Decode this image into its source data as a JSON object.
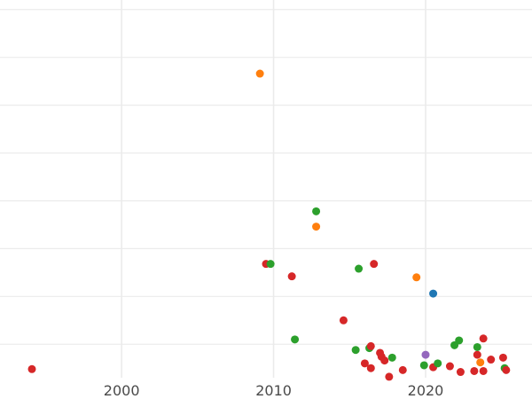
{
  "chart_data": {
    "type": "scatter",
    "title": "",
    "xlabel": "",
    "ylabel": "",
    "xlim": [
      1992,
      2027
    ],
    "ylim": [
      -0.05,
      3.9
    ],
    "grid": true,
    "legend": "none",
    "x_ticks": [
      2000,
      2010,
      2020
    ],
    "y_gridlines": [
      0.3,
      0.8,
      1.3,
      1.8,
      2.3,
      2.8,
      3.3,
      3.8
    ],
    "x_tick_labels": [
      "2000",
      "2010",
      "2020"
    ],
    "colors": {
      "red": "#d62728",
      "green": "#2ca02c",
      "orange": "#ff7f0e",
      "blue": "#1f77b4",
      "purple": "#9467bd",
      "grid": "#ebebeb"
    },
    "points": [
      {
        "x": 1994.1,
        "y": 0.04,
        "color": "red"
      },
      {
        "x": 2009.1,
        "y": 3.13,
        "color": "orange"
      },
      {
        "x": 2009.5,
        "y": 1.14,
        "color": "red"
      },
      {
        "x": 2009.8,
        "y": 1.14,
        "color": "green"
      },
      {
        "x": 2011.2,
        "y": 1.01,
        "color": "red"
      },
      {
        "x": 2011.4,
        "y": 0.35,
        "color": "green"
      },
      {
        "x": 2012.8,
        "y": 1.69,
        "color": "green"
      },
      {
        "x": 2012.8,
        "y": 1.53,
        "color": "orange"
      },
      {
        "x": 2014.6,
        "y": 0.55,
        "color": "red"
      },
      {
        "x": 2015.4,
        "y": 0.24,
        "color": "green"
      },
      {
        "x": 2015.6,
        "y": 1.09,
        "color": "green"
      },
      {
        "x": 2016.0,
        "y": 0.1,
        "color": "red"
      },
      {
        "x": 2016.3,
        "y": 0.26,
        "color": "green"
      },
      {
        "x": 2016.4,
        "y": 0.28,
        "color": "red"
      },
      {
        "x": 2016.4,
        "y": 0.05,
        "color": "red"
      },
      {
        "x": 2016.6,
        "y": 1.14,
        "color": "red"
      },
      {
        "x": 2017.0,
        "y": 0.21,
        "color": "red"
      },
      {
        "x": 2017.1,
        "y": 0.17,
        "color": "red"
      },
      {
        "x": 2017.3,
        "y": 0.13,
        "color": "red"
      },
      {
        "x": 2017.6,
        "y": -0.04,
        "color": "red"
      },
      {
        "x": 2017.8,
        "y": 0.16,
        "color": "green"
      },
      {
        "x": 2018.5,
        "y": 0.03,
        "color": "red"
      },
      {
        "x": 2019.4,
        "y": 1.0,
        "color": "orange"
      },
      {
        "x": 2019.9,
        "y": 0.08,
        "color": "green"
      },
      {
        "x": 2020.0,
        "y": 0.19,
        "color": "purple"
      },
      {
        "x": 2020.5,
        "y": 0.06,
        "color": "red"
      },
      {
        "x": 2020.5,
        "y": 0.83,
        "color": "blue"
      },
      {
        "x": 2020.8,
        "y": 0.1,
        "color": "green"
      },
      {
        "x": 2021.6,
        "y": 0.07,
        "color": "red"
      },
      {
        "x": 2021.9,
        "y": 0.29,
        "color": "green"
      },
      {
        "x": 2022.2,
        "y": 0.34,
        "color": "green"
      },
      {
        "x": 2022.3,
        "y": 0.01,
        "color": "red"
      },
      {
        "x": 2023.2,
        "y": 0.02,
        "color": "red"
      },
      {
        "x": 2023.4,
        "y": 0.19,
        "color": "red"
      },
      {
        "x": 2023.4,
        "y": 0.27,
        "color": "green"
      },
      {
        "x": 2023.6,
        "y": 0.11,
        "color": "orange"
      },
      {
        "x": 2023.8,
        "y": 0.02,
        "color": "red"
      },
      {
        "x": 2023.8,
        "y": 0.36,
        "color": "red"
      },
      {
        "x": 2024.3,
        "y": 0.14,
        "color": "red"
      },
      {
        "x": 2025.1,
        "y": 0.16,
        "color": "red"
      },
      {
        "x": 2025.2,
        "y": 0.05,
        "color": "green"
      },
      {
        "x": 2025.3,
        "y": 0.03,
        "color": "red"
      }
    ]
  }
}
